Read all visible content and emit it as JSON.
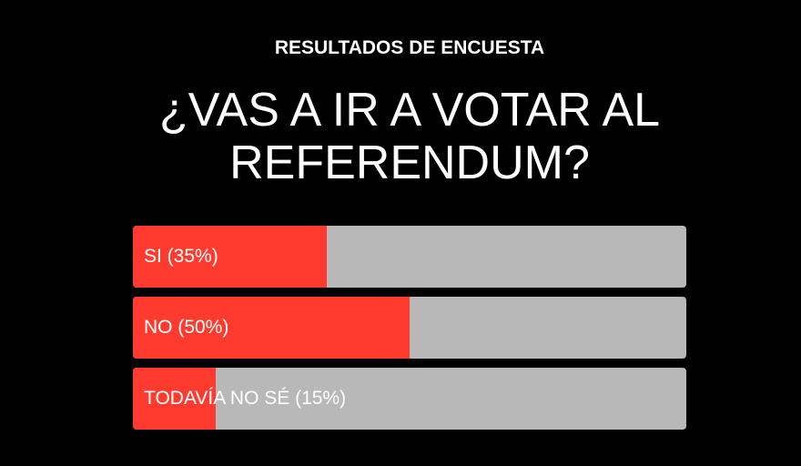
{
  "kicker": "RESULTADOS DE ENCUESTA",
  "question": "¿VAS A IR A VOTAR AL REFERENDUM?",
  "colors": {
    "background": "#000000",
    "fill": "#ff3b30",
    "track": "#b8b8b8",
    "text": "#ffffff"
  },
  "options": [
    {
      "label": "SI (35%)",
      "percent": 35
    },
    {
      "label": "NO (50%)",
      "percent": 50
    },
    {
      "label": "TODAVÍA NO SÉ (15%)",
      "percent": 15
    }
  ],
  "chart_data": {
    "type": "bar",
    "title": "¿VAS A IR A VOTAR AL REFERENDUM?",
    "subtitle": "RESULTADOS DE ENCUESTA",
    "categories": [
      "SI",
      "NO",
      "TODAVÍA NO SÉ"
    ],
    "values": [
      35,
      50,
      15
    ],
    "ylim": [
      0,
      100
    ],
    "grid": false
  }
}
